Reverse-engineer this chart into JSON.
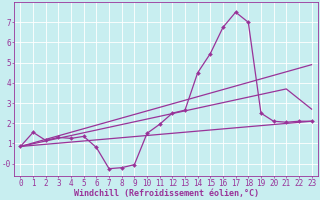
{
  "bg_color": "#c8eef0",
  "grid_color": "#ffffff",
  "line_color": "#993399",
  "marker": "D",
  "markersize": 2,
  "linewidth": 0.9,
  "xlabel": "Windchill (Refroidissement éolien,°C)",
  "xlabel_fontsize": 6,
  "tick_fontsize": 5.5,
  "xlim": [
    -0.5,
    23.5
  ],
  "ylim": [
    -0.6,
    8.0
  ],
  "yticks": [
    0,
    1,
    2,
    3,
    4,
    5,
    6,
    7
  ],
  "ytick_labels": [
    "-0",
    "1",
    "2",
    "3",
    "4",
    "5",
    "6",
    "7"
  ],
  "xticks": [
    0,
    1,
    2,
    3,
    4,
    5,
    6,
    7,
    8,
    9,
    10,
    11,
    12,
    13,
    14,
    15,
    16,
    17,
    18,
    19,
    20,
    21,
    22,
    23
  ],
  "lines": [
    {
      "x": [
        0,
        1,
        2,
        3,
        4,
        5,
        6,
        7,
        8,
        9,
        10,
        11,
        12,
        13,
        14,
        15,
        16,
        17,
        18,
        19,
        20,
        21,
        22,
        23
      ],
      "y": [
        0.85,
        1.55,
        1.15,
        1.3,
        1.25,
        1.35,
        0.8,
        -0.25,
        -0.2,
        -0.05,
        1.5,
        1.95,
        2.5,
        2.65,
        4.5,
        5.45,
        6.75,
        7.5,
        7.0,
        2.5,
        2.1,
        2.05,
        2.1,
        2.1
      ],
      "markers": true
    },
    {
      "x": [
        0,
        23
      ],
      "y": [
        0.85,
        2.1
      ],
      "markers": false
    },
    {
      "x": [
        0,
        23
      ],
      "y": [
        0.85,
        4.9
      ],
      "markers": false
    },
    {
      "comment": "mid envelope line from (0,~0.9) to (21,~3.7) to (23,~2.7)",
      "x": [
        0,
        21,
        23
      ],
      "y": [
        0.85,
        3.7,
        2.7
      ],
      "markers": false
    }
  ]
}
